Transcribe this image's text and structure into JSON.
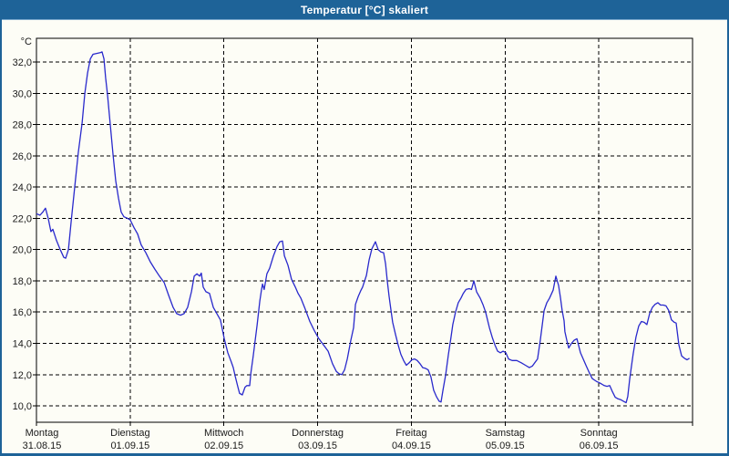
{
  "window": {
    "title": "Temperatur [°C] skaliert"
  },
  "colors": {
    "titlebar_bg": "#1e6398",
    "window_border": "#1e6398",
    "content_bg": "#fdfdf6",
    "grid": "#000000",
    "axis_text": "#1a1a1a",
    "title_text": "#ffffff",
    "line": "#2929cc"
  },
  "chart_data": {
    "type": "line",
    "title": "Temperatur [°C] skaliert",
    "unit_label": "°C",
    "legend_position": "none",
    "grid": {
      "horizontal": "dashed",
      "vertical": "dashed"
    },
    "x_axis": {
      "hours_total": 168,
      "tick_every_hours": 24,
      "days": [
        {
          "day": "Montag",
          "date": "31.08.15"
        },
        {
          "day": "Dienstag",
          "date": "01.09.15"
        },
        {
          "day": "Mittwoch",
          "date": "02.09.15"
        },
        {
          "day": "Donnerstag",
          "date": "03.09.15"
        },
        {
          "day": "Freitag",
          "date": "04.09.15"
        },
        {
          "day": "Samstag",
          "date": "05.09.15"
        },
        {
          "day": "Sonntag",
          "date": "06.09.15"
        }
      ]
    },
    "y_axis": {
      "tick_values": [
        32,
        30,
        28,
        26,
        24,
        22,
        20,
        18,
        16,
        14,
        12,
        10
      ],
      "tick_labels": [
        "32,0",
        "30,0",
        "28,0",
        "26,0",
        "24,0",
        "22,0",
        "20,0",
        "18,0",
        "16,0",
        "14,0",
        "12,0",
        "10,0"
      ],
      "ylim": [
        8.9,
        33.5
      ]
    },
    "series": [
      {
        "name": "Temperatur",
        "color": "#2929cc",
        "points": [
          [
            0,
            22.3
          ],
          [
            0.9,
            22.2
          ],
          [
            1.6,
            22.4
          ],
          [
            2.3,
            22.65
          ],
          [
            3,
            22
          ],
          [
            3.7,
            21.15
          ],
          [
            4.2,
            21.3
          ],
          [
            5.1,
            20.6
          ],
          [
            6.1,
            20
          ],
          [
            7,
            19.5
          ],
          [
            7.5,
            19.45
          ],
          [
            8.2,
            20
          ],
          [
            8.9,
            21.8
          ],
          [
            9.8,
            24
          ],
          [
            10.7,
            26.2
          ],
          [
            11.7,
            28.1
          ],
          [
            12.4,
            30
          ],
          [
            13.1,
            31.3
          ],
          [
            13.8,
            32.2
          ],
          [
            14.5,
            32.5
          ],
          [
            15.4,
            32.55
          ],
          [
            16.3,
            32.6
          ],
          [
            16.8,
            32.65
          ],
          [
            17.3,
            32.2
          ],
          [
            17.7,
            31
          ],
          [
            18.2,
            29.9
          ],
          [
            18.9,
            28
          ],
          [
            19.6,
            26.1
          ],
          [
            20.3,
            24.4
          ],
          [
            21,
            23.3
          ],
          [
            21.7,
            22.4
          ],
          [
            22.4,
            22.1
          ],
          [
            23.3,
            22
          ],
          [
            24,
            21.9
          ],
          [
            25,
            21.4
          ],
          [
            25.9,
            21
          ],
          [
            26.8,
            20.3
          ],
          [
            28,
            19.8
          ],
          [
            29.2,
            19.2
          ],
          [
            30.3,
            18.75
          ],
          [
            31.5,
            18.3
          ],
          [
            32.7,
            17.9
          ],
          [
            33.8,
            17.1
          ],
          [
            35,
            16.3
          ],
          [
            35.9,
            15.9
          ],
          [
            36.9,
            15.8
          ],
          [
            37.8,
            15.9
          ],
          [
            38.7,
            16.3
          ],
          [
            39.7,
            17.3
          ],
          [
            40.4,
            18.3
          ],
          [
            41.1,
            18.45
          ],
          [
            41.8,
            18.3
          ],
          [
            42.2,
            18.5
          ],
          [
            42.7,
            17.6
          ],
          [
            43.4,
            17.3
          ],
          [
            44.3,
            17.2
          ],
          [
            45.3,
            16.3
          ],
          [
            46.2,
            15.9
          ],
          [
            47.1,
            15.5
          ],
          [
            47.6,
            14.9
          ],
          [
            48.1,
            14.3
          ],
          [
            49,
            13.4
          ],
          [
            49.9,
            12.8
          ],
          [
            50.4,
            12.45
          ],
          [
            50.9,
            11.9
          ],
          [
            51.6,
            11.2
          ],
          [
            52,
            10.8
          ],
          [
            52.7,
            10.7
          ],
          [
            53.4,
            11.2
          ],
          [
            53.9,
            11.3
          ],
          [
            54.6,
            11.3
          ],
          [
            54.9,
            12.1
          ],
          [
            55.5,
            13.2
          ],
          [
            56.5,
            15.15
          ],
          [
            57.2,
            16.7
          ],
          [
            57.6,
            17.4
          ],
          [
            57.9,
            17.8
          ],
          [
            58.3,
            17.45
          ],
          [
            59,
            18.45
          ],
          [
            59.7,
            18.8
          ],
          [
            60.7,
            19.6
          ],
          [
            61.6,
            20.2
          ],
          [
            62.3,
            20.5
          ],
          [
            63,
            20.55
          ],
          [
            63.5,
            19.6
          ],
          [
            64.4,
            19
          ],
          [
            65.3,
            18.1
          ],
          [
            66.3,
            17.6
          ],
          [
            67,
            17.2
          ],
          [
            67.7,
            16.9
          ],
          [
            68.8,
            16.2
          ],
          [
            70,
            15.4
          ],
          [
            71.2,
            14.8
          ],
          [
            72.3,
            14.3
          ],
          [
            73.5,
            13.9
          ],
          [
            74.7,
            13.5
          ],
          [
            75.8,
            12.7
          ],
          [
            76.8,
            12.2
          ],
          [
            77.5,
            12.05
          ],
          [
            78.2,
            12
          ],
          [
            78.9,
            12.3
          ],
          [
            79.6,
            13
          ],
          [
            80.5,
            14.2
          ],
          [
            81.2,
            15
          ],
          [
            81.7,
            16.5
          ],
          [
            82.4,
            17
          ],
          [
            83,
            17.35
          ],
          [
            83.5,
            17.6
          ],
          [
            84.5,
            18.35
          ],
          [
            85.2,
            19.35
          ],
          [
            85.9,
            20.05
          ],
          [
            86.8,
            20.5
          ],
          [
            87.5,
            20
          ],
          [
            88.2,
            19.85
          ],
          [
            88.9,
            19.8
          ],
          [
            89.4,
            19.1
          ],
          [
            89.8,
            18.05
          ],
          [
            90.3,
            17
          ],
          [
            90.8,
            16.1
          ],
          [
            91.2,
            15.35
          ],
          [
            91.9,
            14.6
          ],
          [
            92.6,
            13.9
          ],
          [
            93.3,
            13.3
          ],
          [
            94,
            12.9
          ],
          [
            94.7,
            12.6
          ],
          [
            95.4,
            12.75
          ],
          [
            96.1,
            12.95
          ],
          [
            96.8,
            13
          ],
          [
            97.5,
            12.9
          ],
          [
            98.2,
            12.7
          ],
          [
            98.9,
            12.45
          ],
          [
            99.6,
            12.4
          ],
          [
            100.3,
            12.3
          ],
          [
            101,
            11.85
          ],
          [
            101.7,
            11
          ],
          [
            102.4,
            10.6
          ],
          [
            103.1,
            10.3
          ],
          [
            103.6,
            10.25
          ],
          [
            104.1,
            11
          ],
          [
            104.8,
            12
          ],
          [
            105.5,
            13.3
          ],
          [
            106.1,
            14.3
          ],
          [
            106.6,
            15.2
          ],
          [
            107.3,
            16
          ],
          [
            108,
            16.6
          ],
          [
            108.7,
            16.9
          ],
          [
            109.3,
            17.2
          ],
          [
            110,
            17.45
          ],
          [
            110.8,
            17.5
          ],
          [
            111.4,
            17.45
          ],
          [
            112,
            18
          ],
          [
            112.7,
            17.3
          ],
          [
            113.6,
            16.9
          ],
          [
            114.3,
            16.5
          ],
          [
            115,
            16
          ],
          [
            116,
            15
          ],
          [
            116.7,
            14.4
          ],
          [
            117.4,
            13.9
          ],
          [
            118.1,
            13.5
          ],
          [
            118.8,
            13.4
          ],
          [
            119.5,
            13.5
          ],
          [
            120.2,
            13.4
          ],
          [
            120.9,
            13
          ],
          [
            121.8,
            12.9
          ],
          [
            123,
            12.9
          ],
          [
            124.2,
            12.75
          ],
          [
            125.2,
            12.6
          ],
          [
            126.2,
            12.45
          ],
          [
            127,
            12.55
          ],
          [
            127.7,
            12.8
          ],
          [
            128.3,
            13
          ],
          [
            129,
            14.2
          ],
          [
            130,
            16.1
          ],
          [
            130.7,
            16.6
          ],
          [
            131.4,
            16.9
          ],
          [
            132.3,
            17.4
          ],
          [
            133,
            18.3
          ],
          [
            133.7,
            17.7
          ],
          [
            134.2,
            16.9
          ],
          [
            134.6,
            16.1
          ],
          [
            135.1,
            15.45
          ],
          [
            135.3,
            14.75
          ],
          [
            135.8,
            14.2
          ],
          [
            136.3,
            13.7
          ],
          [
            137,
            14
          ],
          [
            137.7,
            14.2
          ],
          [
            138.4,
            14.3
          ],
          [
            139.3,
            13.4
          ],
          [
            140,
            13
          ],
          [
            140.7,
            12.6
          ],
          [
            141.6,
            12.1
          ],
          [
            142.3,
            11.75
          ],
          [
            143.5,
            11.55
          ],
          [
            144,
            11.5
          ],
          [
            144.7,
            11.4
          ],
          [
            145.4,
            11.3
          ],
          [
            146.1,
            11.25
          ],
          [
            146.8,
            11.3
          ],
          [
            147.5,
            10.9
          ],
          [
            148.2,
            10.55
          ],
          [
            148.9,
            10.45
          ],
          [
            149.6,
            10.4
          ],
          [
            150.3,
            10.3
          ],
          [
            151,
            10.2
          ],
          [
            151.4,
            10.6
          ],
          [
            151.9,
            11.7
          ],
          [
            152.4,
            12.6
          ],
          [
            152.8,
            13.35
          ],
          [
            153.5,
            14.4
          ],
          [
            154.2,
            15.1
          ],
          [
            154.9,
            15.4
          ],
          [
            155.6,
            15.35
          ],
          [
            156.3,
            15.2
          ],
          [
            157,
            15.9
          ],
          [
            157.7,
            16.3
          ],
          [
            158.4,
            16.5
          ],
          [
            159.1,
            16.6
          ],
          [
            159.8,
            16.45
          ],
          [
            160.5,
            16.45
          ],
          [
            161.2,
            16.4
          ],
          [
            161.9,
            16.1
          ],
          [
            162.6,
            15.5
          ],
          [
            163.3,
            15.35
          ],
          [
            163.8,
            15.3
          ],
          [
            164.5,
            13.9
          ],
          [
            165.2,
            13.2
          ],
          [
            165.9,
            13.05
          ],
          [
            166.6,
            12.95
          ],
          [
            167.2,
            13.05
          ]
        ]
      }
    ]
  }
}
